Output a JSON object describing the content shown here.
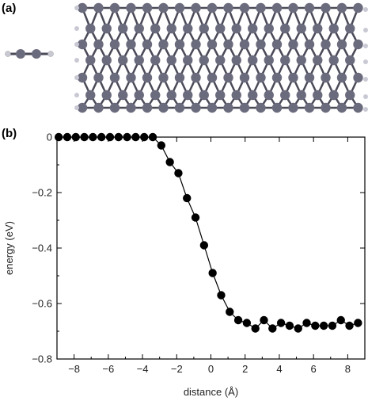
{
  "figure": {
    "panel_a_label": "(a)",
    "panel_b_label": "(b)",
    "atom_color": "#6b6b7e",
    "hydrogen_color": "#c9c9d4",
    "bond_color": "#4a4a58"
  },
  "chart_data": {
    "type": "scatter",
    "xlabel": "distance (Å)",
    "ylabel": "energy (eV)",
    "xlim": [
      -9,
      9
    ],
    "ylim": [
      -0.8,
      0.0
    ],
    "x_ticks": [
      -8,
      -6,
      -4,
      -2,
      0,
      2,
      4,
      6,
      8
    ],
    "x_tick_labels": [
      "−8",
      "−6",
      "−4",
      "−2",
      "0",
      "2",
      "4",
      "6",
      "8"
    ],
    "y_ticks": [
      0,
      -0.2,
      -0.4,
      -0.6,
      -0.8
    ],
    "y_tick_labels": [
      "0",
      "−0.2",
      "−0.4",
      "−0.6",
      "−0.8"
    ],
    "grid": false,
    "line_connects_points": true,
    "series": [
      {
        "x": [
          -8.9,
          -8.4,
          -7.9,
          -7.4,
          -6.9,
          -6.4,
          -5.9,
          -5.4,
          -4.9,
          -4.4,
          -3.9,
          -3.4,
          -2.9,
          -2.4,
          -1.9,
          -1.4,
          -0.9,
          -0.4,
          0.1,
          0.6,
          1.1,
          1.6,
          2.1,
          2.6,
          3.1,
          3.6,
          4.1,
          4.6,
          5.1,
          5.6,
          6.1,
          6.6,
          7.1,
          7.6,
          8.1,
          8.6
        ],
        "y": [
          0.0,
          0.0,
          0.0,
          0.0,
          0.0,
          0.0,
          0.0,
          0.0,
          0.0,
          0.0,
          0.0,
          0.0,
          -0.03,
          -0.09,
          -0.13,
          -0.22,
          -0.29,
          -0.39,
          -0.49,
          -0.57,
          -0.63,
          -0.66,
          -0.67,
          -0.69,
          -0.66,
          -0.69,
          -0.67,
          -0.68,
          -0.69,
          -0.67,
          -0.68,
          -0.68,
          -0.68,
          -0.66,
          -0.68,
          -0.67
        ]
      }
    ]
  }
}
